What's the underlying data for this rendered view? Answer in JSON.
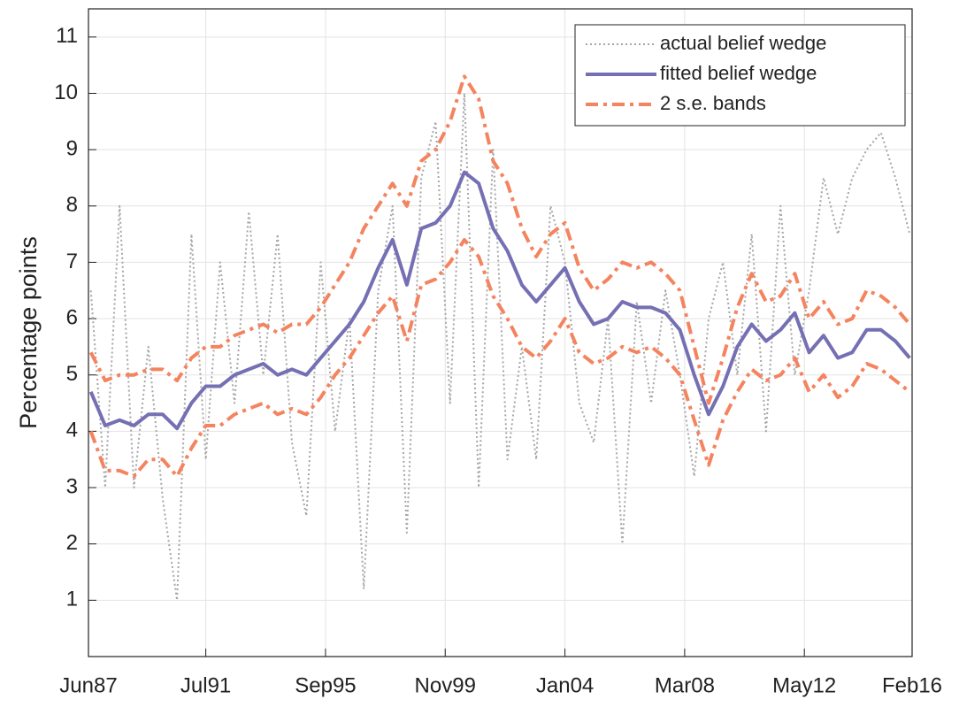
{
  "chart_data": {
    "type": "line",
    "y_label": "Percentage points",
    "x": [
      1987.5,
      1988,
      1988.5,
      1989,
      1989.5,
      1990,
      1990.5,
      1991,
      1991.5,
      1992,
      1992.5,
      1993,
      1993.5,
      1994,
      1994.5,
      1995,
      1995.5,
      1996,
      1996.5,
      1997,
      1997.5,
      1998,
      1998.5,
      1999,
      1999.5,
      2000,
      2000.5,
      2001,
      2001.5,
      2002,
      2002.5,
      2003,
      2003.5,
      2004,
      2004.5,
      2005,
      2005.5,
      2006,
      2006.5,
      2007,
      2007.5,
      2008,
      2008.5,
      2009,
      2009.5,
      2010,
      2010.5,
      2011,
      2011.5,
      2012,
      2012.5,
      2013,
      2013.5,
      2014,
      2014.5,
      2015,
      2015.5,
      2016
    ],
    "series": [
      {
        "name": "actual belief wedge",
        "color": "#a6a6a6",
        "style": "dotted",
        "values": [
          6.5,
          3.0,
          8.0,
          3.0,
          5.5,
          2.8,
          1.0,
          7.5,
          3.5,
          7.0,
          4.5,
          7.9,
          5.0,
          7.5,
          3.8,
          2.5,
          7.0,
          4.0,
          6.0,
          1.2,
          6.5,
          8.0,
          2.2,
          8.5,
          9.5,
          4.5,
          10.0,
          3.0,
          9.0,
          3.5,
          5.5,
          3.5,
          8.0,
          7.0,
          4.5,
          3.8,
          6.0,
          2.0,
          6.3,
          4.5,
          6.5,
          5.0,
          3.2,
          6.0,
          7.0,
          5.0,
          7.5,
          4.0,
          8.0,
          5.0,
          6.5,
          8.5,
          7.5,
          8.5,
          9.0,
          9.3,
          8.5,
          7.5
        ]
      },
      {
        "name": "fitted belief wedge",
        "color": "#7570b3",
        "style": "solid",
        "values": [
          4.7,
          4.1,
          4.2,
          4.1,
          4.3,
          4.3,
          4.05,
          4.5,
          4.8,
          4.8,
          5.0,
          5.1,
          5.2,
          5.0,
          5.1,
          5.0,
          5.3,
          5.6,
          5.9,
          6.3,
          6.9,
          7.4,
          6.6,
          7.6,
          7.7,
          8.0,
          8.6,
          8.4,
          7.6,
          7.2,
          6.6,
          6.3,
          6.6,
          6.9,
          6.3,
          5.9,
          6.0,
          6.3,
          6.2,
          6.2,
          6.1,
          5.8,
          5.0,
          4.3,
          4.8,
          5.5,
          5.9,
          5.6,
          5.8,
          6.1,
          5.4,
          5.7,
          5.3,
          5.4,
          5.8,
          5.8,
          5.6,
          5.3
        ]
      },
      {
        "name": "2 s.e. bands",
        "color": "#f4845f",
        "style": "dashdot",
        "values": [
          5.4,
          4.9,
          5.0,
          5.0,
          5.1,
          5.1,
          4.9,
          5.3,
          5.5,
          5.5,
          5.7,
          5.8,
          5.9,
          5.75,
          5.9,
          5.9,
          6.2,
          6.6,
          7.0,
          7.6,
          8.0,
          8.4,
          8.0,
          8.8,
          9.0,
          9.5,
          10.3,
          9.9,
          8.8,
          8.4,
          7.6,
          7.1,
          7.5,
          7.7,
          6.9,
          6.5,
          6.7,
          7.0,
          6.9,
          7.0,
          6.8,
          6.5,
          5.5,
          4.5,
          5.3,
          6.2,
          6.8,
          6.3,
          6.4,
          6.8,
          6.0,
          6.3,
          5.9,
          6.0,
          6.5,
          6.4,
          6.2,
          5.9
        ]
      },
      {
        "color": "#f4845f",
        "style": "dashdot",
        "values": [
          4.0,
          3.3,
          3.3,
          3.2,
          3.5,
          3.5,
          3.2,
          3.7,
          4.1,
          4.1,
          4.3,
          4.4,
          4.5,
          4.3,
          4.4,
          4.3,
          4.6,
          5.0,
          5.3,
          5.7,
          6.1,
          6.4,
          5.6,
          6.6,
          6.7,
          7.0,
          7.4,
          7.1,
          6.4,
          6.0,
          5.5,
          5.3,
          5.6,
          6.0,
          5.4,
          5.2,
          5.3,
          5.5,
          5.4,
          5.5,
          5.3,
          5.0,
          4.2,
          3.4,
          4.2,
          4.7,
          5.1,
          4.9,
          5.0,
          5.3,
          4.7,
          5.0,
          4.6,
          4.8,
          5.2,
          5.1,
          4.9,
          4.7
        ]
      }
    ],
    "xlim": [
      1987.417,
      2016.083
    ],
    "xticks": [
      {
        "value": 1987.417,
        "label": "Jun87"
      },
      {
        "value": 1991.5,
        "label": "Jul91"
      },
      {
        "value": 1995.667,
        "label": "Sep95"
      },
      {
        "value": 1999.833,
        "label": "Nov99"
      },
      {
        "value": 2004.0,
        "label": "Jan04"
      },
      {
        "value": 2008.167,
        "label": "Mar08"
      },
      {
        "value": 2012.333,
        "label": "May12"
      },
      {
        "value": 2016.083,
        "label": "Feb16"
      }
    ],
    "ylim": [
      0,
      11.5
    ],
    "yticks": [
      1,
      2,
      3,
      4,
      5,
      6,
      7,
      8,
      9,
      10,
      11
    ],
    "grid": true,
    "legend": "upper-right"
  }
}
